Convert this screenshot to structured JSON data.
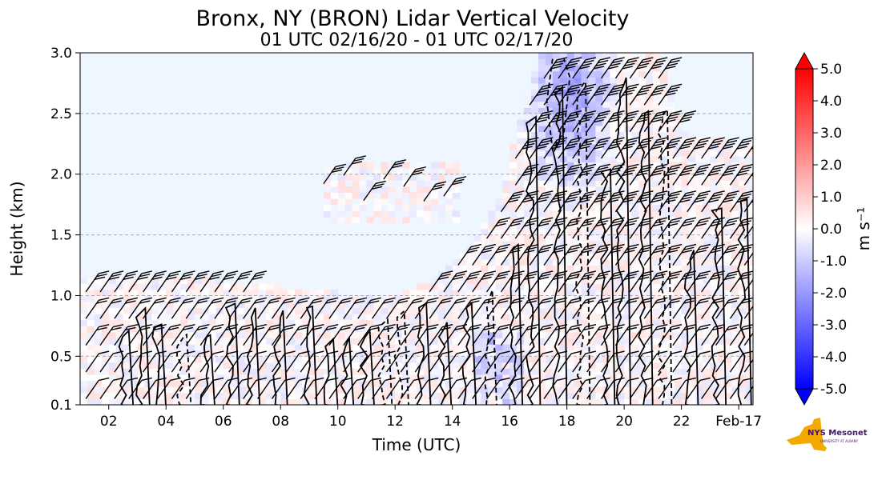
{
  "chart_data": {
    "type": "heatmap",
    "title": "Bronx, NY (BRON) Lidar Vertical Velocity",
    "subtitle": "01 UTC 02/16/20 - 01 UTC 02/17/20",
    "xlabel": "Time (UTC)",
    "ylabel": "Height (km)",
    "x_ticks": [
      "02",
      "04",
      "06",
      "08",
      "10",
      "12",
      "14",
      "16",
      "18",
      "20",
      "22",
      "Feb-17"
    ],
    "x_tick_hours": [
      2,
      4,
      6,
      8,
      10,
      12,
      14,
      16,
      18,
      20,
      22,
      24
    ],
    "xlim_hours": [
      1,
      24.5
    ],
    "y_ticks": [
      "0.1",
      "0.5",
      "1.0",
      "1.5",
      "2.0",
      "2.5",
      "3.0"
    ],
    "y_tick_values": [
      0.1,
      0.5,
      1.0,
      1.5,
      2.0,
      2.5,
      3.0
    ],
    "ylim": [
      0.1,
      3.0
    ],
    "grid": "horizontal dashed",
    "colorbar": {
      "label": "m s⁻¹",
      "ticks": [
        "5.0",
        "4.0",
        "3.0",
        "2.0",
        "1.0",
        "0.0",
        "-1.0",
        "-2.0",
        "-3.0",
        "-4.0",
        "-5.0"
      ],
      "tick_values": [
        5,
        4,
        3,
        2,
        1,
        0,
        -1,
        -2,
        -3,
        -4,
        -5
      ],
      "range": [
        -5,
        5
      ],
      "colors": [
        "#0000ff",
        "#ffffff",
        "#ff0000"
      ]
    },
    "data_region_tops_km": [
      {
        "hour": 1.0,
        "top": 1.12
      },
      {
        "hour": 4.0,
        "top": 1.15
      },
      {
        "hour": 6.0,
        "top": 1.1
      },
      {
        "hour": 8.0,
        "top": 1.05
      },
      {
        "hour": 10.0,
        "top": 1.0
      },
      {
        "hour": 12.0,
        "top": 1.0
      },
      {
        "hour": 13.0,
        "top": 1.1
      },
      {
        "hour": 14.5,
        "top": 1.4
      },
      {
        "hour": 15.5,
        "top": 1.8
      },
      {
        "hour": 17.0,
        "top": 3.0
      },
      {
        "hour": 21.0,
        "top": 3.0
      },
      {
        "hour": 22.0,
        "top": 2.3
      },
      {
        "hour": 24.5,
        "top": 2.2
      }
    ],
    "elevated_layer": {
      "start_hour": 9.5,
      "end_hour": 14,
      "bottom_km": 1.6,
      "top_km": 2.1
    },
    "updraft_max_ms": 1.0,
    "downdraft_min_ms": -2.0,
    "downdraft_core": {
      "hour": 18,
      "height_km": 2.6
    },
    "wind_barbs": "overlaid across data region",
    "contours": "black solid (positive) and dashed (negative) vertical velocity isolines"
  },
  "logo": {
    "text": "NYS Mesonet",
    "sub": "UNIVERSITY AT ALBANY",
    "color": "#f2a900",
    "text_color": "#46166b"
  }
}
